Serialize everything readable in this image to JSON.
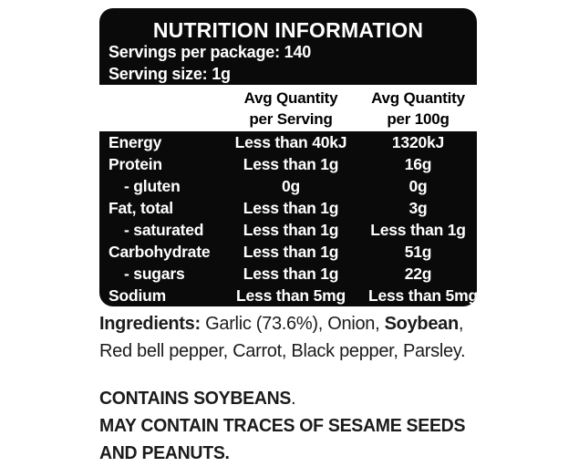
{
  "colors": {
    "panel_bg": "#0a0a0a",
    "panel_text": "#ffffff",
    "page_bg": "#ffffff",
    "body_text": "#1b1b1b"
  },
  "label": {
    "title": "NUTRITION INFORMATION",
    "servings_line": "Servings per package: 140",
    "serving_size_line": "Serving size: 1g",
    "columns": {
      "serving_line1": "Avg Quantity",
      "serving_line2": "per Serving",
      "per100g_line1": "Avg Quantity",
      "per100g_line2": "per 100g"
    },
    "rows": [
      {
        "name": "Energy",
        "indent": false,
        "per_serving": "Less than 40kJ",
        "per_100g": "1320kJ"
      },
      {
        "name": "Protein",
        "indent": false,
        "per_serving": "Less than 1g",
        "per_100g": "16g"
      },
      {
        "name": "- gluten",
        "indent": true,
        "per_serving": "0g",
        "per_100g": "0g"
      },
      {
        "name": "Fat, total",
        "indent": false,
        "per_serving": "Less than 1g",
        "per_100g": "3g"
      },
      {
        "name": "- saturated",
        "indent": true,
        "per_serving": "Less than 1g",
        "per_100g": "Less than 1g"
      },
      {
        "name": "Carbohydrate",
        "indent": false,
        "per_serving": "Less than 1g",
        "per_100g": "51g"
      },
      {
        "name": "- sugars",
        "indent": true,
        "per_serving": "Less than 1g",
        "per_100g": "22g"
      },
      {
        "name": "Sodium",
        "indent": false,
        "per_serving": "Less than 5mg",
        "per_100g": "Less than 5mg"
      }
    ]
  },
  "ingredients": {
    "label": "Ingredients:",
    "line1_a": " Garlic (73.6%), Onion, ",
    "bold_item": "Soybean",
    "line1_b": ",",
    "line2": "Red bell pepper, Carrot, Black pepper, Parsley."
  },
  "allergen": {
    "contains_bold": "CONTAINS SOYBEANS",
    "contains_tail": ".",
    "may_contain_line1": "MAY CONTAIN TRACES OF SESAME SEEDS",
    "may_contain_line2": "AND PEANUTS."
  }
}
